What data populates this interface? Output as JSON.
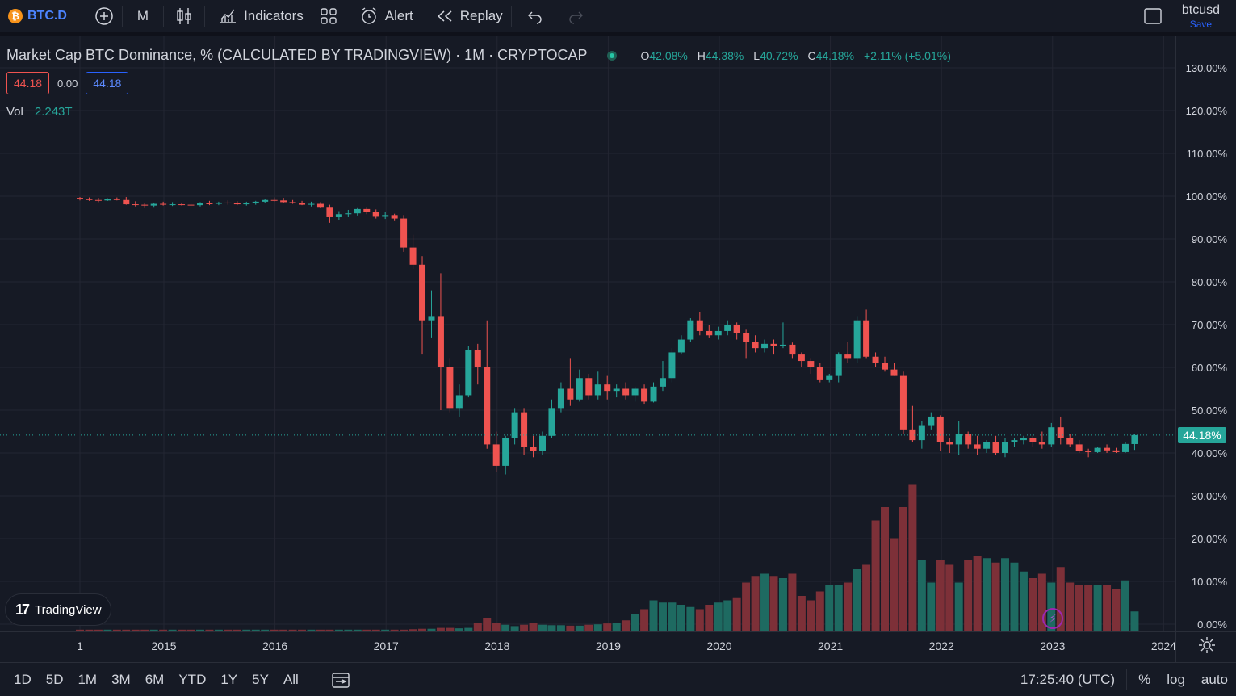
{
  "toolbar": {
    "symbol": "BTC.D",
    "symbol_badge": "₿",
    "interval": "M",
    "indicators_label": "Indicators",
    "alert_label": "Alert",
    "replay_label": "Replay",
    "user_name": "btcusd",
    "save_label": "Save"
  },
  "legend": {
    "title": "Market Cap BTC Dominance, % (CALCULATED BY TRADINGVIEW) · 1M · CRYPTOCAP",
    "o_key": "O",
    "o_val": "42.08%",
    "h_key": "H",
    "h_val": "44.38%",
    "l_key": "L",
    "l_val": "40.72%",
    "c_key": "C",
    "c_val": "44.18%",
    "change": "+2.11% (+5.01%)",
    "bid": "44.18",
    "spread": "0.00",
    "ask": "44.18",
    "vol_label": "Vol",
    "vol_value": "2.243T"
  },
  "brand": {
    "mark": "17",
    "name": "TradingView"
  },
  "last_price_tag": "44.18%",
  "bottom": {
    "ranges": [
      "1D",
      "5D",
      "1M",
      "3M",
      "6M",
      "YTD",
      "1Y",
      "5Y",
      "All"
    ],
    "clock": "17:25:40 (UTC)",
    "percent_label": "%",
    "log_label": "log",
    "auto_label": "auto"
  },
  "colors": {
    "up": "#26a69a",
    "down": "#ef5350",
    "up_vol": "#1e6a61",
    "down_vol": "#7d3038",
    "grid": "#232632",
    "bg": "#161a25"
  },
  "chart_data": {
    "type": "candlestick",
    "title": "Market Cap BTC Dominance, % (CALCULATED BY TRADINGVIEW) · 1M · CRYPTOCAP",
    "ylim": [
      -2,
      136
    ],
    "y_ticks": [
      "130.00%",
      "120.00%",
      "110.00%",
      "100.00%",
      "90.00%",
      "80.00%",
      "70.00%",
      "60.00%",
      "50.00%",
      "40.00%",
      "30.00%",
      "20.00%",
      "10.00%",
      "0.00%"
    ],
    "y_tick_values": [
      130,
      120,
      110,
      100,
      90,
      80,
      70,
      60,
      50,
      40,
      30,
      20,
      10,
      0
    ],
    "x_ticks": [
      "1",
      "2015",
      "2016",
      "2017",
      "2018",
      "2019",
      "2020",
      "2021",
      "2022",
      "2023",
      "2024"
    ],
    "x_tick_values": [
      2014.0,
      2014.75,
      2015.75,
      2016.75,
      2017.75,
      2018.75,
      2019.75,
      2020.75,
      2021.75,
      2022.75,
      2023.75
    ],
    "x_range": [
      2013.6,
      2023.85
    ],
    "start": 2014.0,
    "step": 0.08333,
    "last_value": 44.18,
    "candles": [
      [
        99.6,
        99.8,
        99.0,
        99.3
      ],
      [
        99.3,
        99.7,
        98.9,
        99.1
      ],
      [
        99.1,
        99.6,
        98.6,
        99.0
      ],
      [
        99.0,
        99.5,
        98.9,
        99.4
      ],
      [
        99.4,
        99.7,
        99.0,
        99.1
      ],
      [
        99.1,
        99.8,
        98.0,
        98.1
      ],
      [
        98.1,
        98.8,
        97.6,
        98.0
      ],
      [
        98.0,
        98.5,
        97.4,
        97.8
      ],
      [
        97.8,
        98.5,
        97.5,
        98.2
      ],
      [
        98.2,
        98.7,
        97.8,
        98.0
      ],
      [
        98.0,
        98.6,
        97.7,
        98.1
      ],
      [
        98.1,
        98.5,
        97.8,
        98.0
      ],
      [
        98.0,
        98.5,
        97.6,
        97.9
      ],
      [
        97.9,
        98.6,
        97.6,
        98.3
      ],
      [
        98.3,
        98.9,
        97.9,
        98.2
      ],
      [
        98.2,
        98.7,
        97.9,
        98.5
      ],
      [
        98.5,
        99.0,
        98.0,
        98.4
      ],
      [
        98.4,
        98.8,
        97.9,
        98.1
      ],
      [
        98.1,
        98.7,
        97.8,
        98.4
      ],
      [
        98.4,
        98.9,
        98.0,
        98.7
      ],
      [
        98.7,
        99.4,
        98.4,
        99.1
      ],
      [
        99.1,
        99.7,
        98.7,
        99.0
      ],
      [
        99.0,
        99.6,
        98.4,
        98.6
      ],
      [
        98.6,
        99.1,
        98.2,
        98.4
      ],
      [
        98.4,
        98.9,
        97.9,
        98.0
      ],
      [
        98.0,
        98.7,
        97.6,
        98.2
      ],
      [
        98.2,
        98.6,
        97.2,
        97.5
      ],
      [
        97.5,
        98.0,
        93.8,
        95.1
      ],
      [
        95.1,
        96.5,
        94.5,
        95.8
      ],
      [
        95.8,
        96.8,
        95.1,
        96.0
      ],
      [
        96.0,
        97.4,
        95.5,
        97.0
      ],
      [
        97.0,
        97.5,
        95.8,
        96.3
      ],
      [
        96.3,
        96.9,
        94.8,
        95.2
      ],
      [
        95.2,
        96.4,
        94.7,
        95.6
      ],
      [
        95.6,
        95.9,
        94.2,
        94.8
      ],
      [
        94.8,
        95.6,
        87.0,
        88.0
      ],
      [
        88.0,
        91.0,
        83.0,
        84.0
      ],
      [
        84.0,
        86.0,
        63.0,
        71.0
      ],
      [
        71.0,
        78.0,
        67.0,
        72.0
      ],
      [
        72.0,
        82.0,
        50.0,
        60.0
      ],
      [
        60.0,
        62.0,
        49.5,
        50.5
      ],
      [
        50.5,
        56.0,
        48.5,
        53.5
      ],
      [
        53.5,
        65.0,
        53.0,
        64.0
      ],
      [
        64.0,
        65.5,
        56.0,
        60.0
      ],
      [
        60.0,
        71.0,
        41.0,
        42.0
      ],
      [
        42.0,
        45.0,
        35.5,
        37.0
      ],
      [
        37.0,
        44.0,
        35.0,
        43.5
      ],
      [
        43.5,
        50.5,
        42.0,
        49.5
      ],
      [
        49.5,
        50.5,
        39.5,
        41.5
      ],
      [
        41.5,
        44.0,
        39.0,
        40.5
      ],
      [
        40.5,
        45.0,
        39.5,
        44.0
      ],
      [
        44.0,
        52.5,
        43.5,
        50.5
      ],
      [
        50.5,
        56.5,
        49.5,
        55.0
      ],
      [
        55.0,
        62.0,
        51.0,
        52.5
      ],
      [
        52.5,
        59.5,
        52.0,
        57.5
      ],
      [
        57.5,
        58.5,
        52.5,
        53.5
      ],
      [
        53.5,
        59.0,
        52.5,
        56.0
      ],
      [
        56.0,
        58.0,
        52.5,
        54.5
      ],
      [
        54.5,
        56.0,
        53.0,
        55.0
      ],
      [
        55.0,
        56.5,
        52.5,
        53.5
      ],
      [
        53.5,
        55.5,
        52.0,
        55.0
      ],
      [
        55.0,
        56.0,
        51.5,
        52.0
      ],
      [
        52.0,
        56.5,
        51.8,
        55.5
      ],
      [
        55.5,
        61.5,
        54.5,
        57.5
      ],
      [
        57.5,
        64.5,
        56.5,
        63.5
      ],
      [
        63.5,
        67.5,
        63.0,
        66.5
      ],
      [
        66.5,
        71.5,
        66.0,
        71.0
      ],
      [
        71.0,
        73.0,
        67.5,
        68.5
      ],
      [
        68.5,
        70.0,
        67.0,
        67.5
      ],
      [
        67.5,
        69.5,
        66.5,
        68.5
      ],
      [
        68.5,
        71.0,
        67.5,
        70.0
      ],
      [
        70.0,
        70.5,
        66.5,
        68.0
      ],
      [
        68.0,
        68.8,
        62.0,
        66.0
      ],
      [
        66.0,
        67.5,
        63.5,
        64.5
      ],
      [
        64.5,
        66.5,
        63.5,
        65.5
      ],
      [
        65.5,
        66.5,
        63.0,
        65.0
      ],
      [
        65.0,
        70.5,
        64.5,
        65.3
      ],
      [
        65.3,
        65.8,
        62.0,
        63.0
      ],
      [
        63.0,
        63.5,
        60.0,
        61.5
      ],
      [
        61.5,
        62.0,
        58.5,
        60.0
      ],
      [
        60.0,
        61.0,
        56.5,
        57.0
      ],
      [
        57.0,
        58.5,
        56.5,
        58.0
      ],
      [
        58.0,
        63.5,
        56.5,
        63.0
      ],
      [
        63.0,
        66.0,
        61.0,
        62.0
      ],
      [
        62.0,
        72.0,
        61.0,
        71.0
      ],
      [
        71.0,
        73.5,
        62.0,
        62.5
      ],
      [
        62.5,
        63.5,
        60.0,
        61.0
      ],
      [
        61.0,
        62.5,
        59.0,
        59.5
      ],
      [
        59.5,
        61.0,
        58.0,
        58.0
      ],
      [
        58.0,
        59.0,
        44.5,
        45.5
      ],
      [
        45.5,
        51.0,
        42.5,
        43.0
      ],
      [
        43.0,
        47.5,
        41.0,
        46.5
      ],
      [
        46.5,
        49.5,
        45.5,
        48.5
      ],
      [
        48.5,
        48.8,
        40.5,
        42.5
      ],
      [
        42.5,
        43.5,
        40.0,
        42.0
      ],
      [
        42.0,
        47.5,
        39.5,
        44.5
      ],
      [
        44.5,
        45.0,
        41.0,
        42.0
      ],
      [
        42.0,
        44.0,
        39.5,
        41.0
      ],
      [
        41.0,
        43.0,
        40.0,
        42.5
      ],
      [
        42.5,
        44.0,
        39.5,
        40.0
      ],
      [
        40.0,
        43.5,
        39.0,
        42.5
      ],
      [
        42.5,
        43.5,
        41.5,
        43.0
      ],
      [
        43.0,
        44.0,
        42.0,
        43.5
      ],
      [
        43.5,
        44.0,
        41.5,
        42.5
      ],
      [
        42.5,
        45.0,
        41.0,
        42.0
      ],
      [
        42.0,
        47.0,
        41.5,
        46.0
      ],
      [
        46.0,
        48.5,
        42.0,
        43.5
      ],
      [
        43.5,
        44.5,
        41.5,
        42.0
      ],
      [
        42.0,
        43.0,
        40.0,
        40.5
      ],
      [
        40.5,
        41.0,
        39.0,
        40.2
      ],
      [
        40.2,
        41.5,
        40.0,
        41.2
      ],
      [
        41.2,
        42.0,
        40.0,
        40.6
      ],
      [
        40.6,
        41.2,
        40.0,
        40.2
      ],
      [
        40.2,
        42.5,
        40.0,
        42.1
      ],
      [
        42.08,
        44.38,
        40.72,
        44.18
      ]
    ],
    "volumes": [
      0.4,
      0.4,
      0.4,
      0.4,
      0.4,
      0.4,
      0.4,
      0.4,
      0.4,
      0.4,
      0.4,
      0.4,
      0.4,
      0.4,
      0.4,
      0.4,
      0.4,
      0.4,
      0.4,
      0.4,
      0.4,
      0.4,
      0.4,
      0.4,
      0.4,
      0.4,
      0.4,
      0.4,
      0.4,
      0.4,
      0.4,
      0.4,
      0.4,
      0.4,
      0.4,
      0.4,
      0.5,
      0.6,
      0.6,
      0.8,
      0.8,
      0.7,
      0.8,
      2.0,
      3.0,
      2.0,
      1.5,
      1.2,
      1.5,
      2.0,
      1.5,
      1.4,
      1.4,
      1.3,
      1.3,
      1.5,
      1.6,
      1.8,
      2.0,
      2.5,
      4.0,
      5.0,
      7.0,
      6.5,
      6.5,
      6.0,
      5.5,
      5.0,
      6.0,
      6.5,
      7.0,
      7.5,
      11.0,
      12.5,
      13.0,
      12.5,
      12.0,
      13.0,
      8.0,
      7.0,
      9.0,
      10.5,
      10.5,
      11.0,
      14.0,
      15.0,
      25.0,
      28.0,
      21.0,
      28.0,
      33.0,
      16.0,
      11.0,
      16.0,
      15.0,
      11.0,
      16.0,
      17.0,
      16.5,
      15.5,
      16.5,
      15.5,
      13.5,
      12.0,
      13.0,
      11.0,
      14.5,
      11.0,
      10.5,
      10.5,
      10.5,
      10.5,
      9.5,
      11.5,
      4.5
    ]
  }
}
